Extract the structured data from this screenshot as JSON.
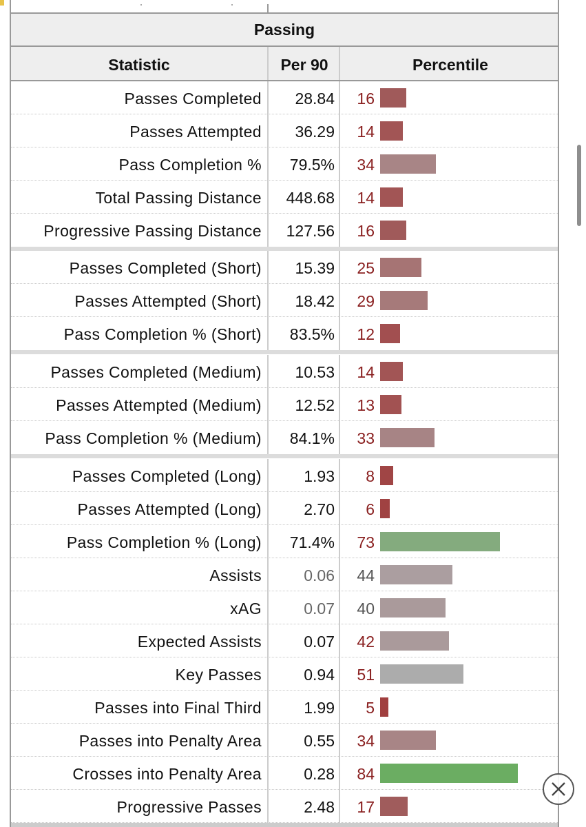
{
  "table": {
    "title": "Passing",
    "headers": {
      "statistic": "Statistic",
      "per90": "Per 90",
      "percentile": "Percentile"
    },
    "rows": [
      {
        "stat": "Passes Completed",
        "per90": "28.84",
        "percentile": 16,
        "color": "#a05a5a"
      },
      {
        "stat": "Passes Attempted",
        "per90": "36.29",
        "percentile": 14,
        "color": "#a25555"
      },
      {
        "stat": "Pass Completion %",
        "per90": "79.5%",
        "percentile": 34,
        "color": "#a88586"
      },
      {
        "stat": "Total Passing Distance",
        "per90": "448.68",
        "percentile": 14,
        "color": "#a25555"
      },
      {
        "stat": "Progressive Passing Distance",
        "per90": "127.56",
        "percentile": 16,
        "color": "#a05a5a"
      },
      {
        "stat": "Passes Completed (Short)",
        "per90": "15.39",
        "percentile": 25,
        "color": "#a67474"
      },
      {
        "stat": "Passes Attempted (Short)",
        "per90": "18.42",
        "percentile": 29,
        "color": "#a67a7a"
      },
      {
        "stat": "Pass Completion % (Short)",
        "per90": "83.5%",
        "percentile": 12,
        "color": "#a24f50"
      },
      {
        "stat": "Passes Completed (Medium)",
        "per90": "10.53",
        "percentile": 14,
        "color": "#a25555"
      },
      {
        "stat": "Passes Attempted (Medium)",
        "per90": "12.52",
        "percentile": 13,
        "color": "#a25252"
      },
      {
        "stat": "Pass Completion % (Medium)",
        "per90": "84.1%",
        "percentile": 33,
        "color": "#a78485"
      },
      {
        "stat": "Passes Completed (Long)",
        "per90": "1.93",
        "percentile": 8,
        "color": "#a04545"
      },
      {
        "stat": "Passes Attempted (Long)",
        "per90": "2.70",
        "percentile": 6,
        "color": "#a04242"
      },
      {
        "stat": "Pass Completion % (Long)",
        "per90": "71.4%",
        "percentile": 73,
        "color": "#84ab7e"
      },
      {
        "stat": "Assists",
        "per90": "0.06",
        "percentile": 44,
        "color": "#ab9ea0",
        "muted": true
      },
      {
        "stat": "xAG",
        "per90": "0.07",
        "percentile": 40,
        "color": "#aa9a9b",
        "muted": true
      },
      {
        "stat": "Expected Assists",
        "per90": "0.07",
        "percentile": 42,
        "color": "#aa9a9b"
      },
      {
        "stat": "Key Passes",
        "per90": "0.94",
        "percentile": 51,
        "color": "#acacac"
      },
      {
        "stat": "Passes into Final Third",
        "per90": "1.99",
        "percentile": 5,
        "color": "#a03f3f"
      },
      {
        "stat": "Passes into Penalty Area",
        "per90": "0.55",
        "percentile": 34,
        "color": "#a88586"
      },
      {
        "stat": "Crosses into Penalty Area",
        "per90": "0.28",
        "percentile": 84,
        "color": "#6bad62"
      },
      {
        "stat": "Progressive Passes",
        "per90": "2.48",
        "percentile": 17,
        "color": "#a05c5c"
      }
    ]
  },
  "icons": {
    "close": "close-icon"
  }
}
